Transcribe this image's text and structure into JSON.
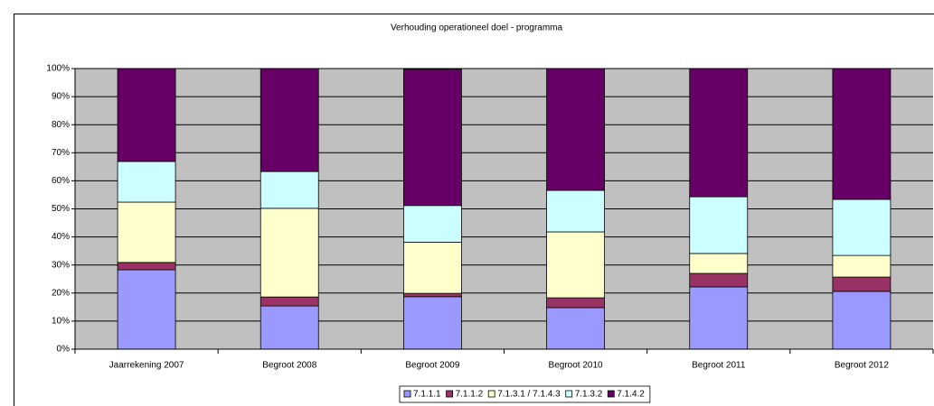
{
  "chart_data": {
    "type": "stacked_bar_100",
    "title": "Verhouding operationeel doel - programma",
    "categories": [
      "Jaarrekening 2007",
      "Begroot 2008",
      "Begroot 2009",
      "Begroot 2010",
      "Begroot 2011",
      "Begroot 2012"
    ],
    "series": [
      {
        "name": "7.1.1.1",
        "color": "#9999ff",
        "values": [
          28.3,
          15.4,
          18.7,
          14.8,
          22.2,
          20.6
        ]
      },
      {
        "name": "7.1.1.2",
        "color": "#993366",
        "values": [
          2.6,
          3.2,
          1.2,
          3.5,
          4.8,
          5.1
        ]
      },
      {
        "name": "7.1.3.1 / 7.1.4.3",
        "color": "#ffffcc",
        "values": [
          21.5,
          31.6,
          18.2,
          23.5,
          7.1,
          7.7
        ]
      },
      {
        "name": "7.1.3.2",
        "color": "#ccffff",
        "values": [
          14.5,
          13.1,
          13.1,
          14.8,
          20.2,
          20.0
        ]
      },
      {
        "name": "7.1.4.2",
        "color": "#660066",
        "values": [
          33.1,
          36.7,
          48.6,
          43.4,
          45.7,
          46.6
        ]
      }
    ],
    "ylim": [
      0,
      100
    ],
    "yticks": [
      {
        "value": 0,
        "label": "0%"
      },
      {
        "value": 10,
        "label": "10%"
      },
      {
        "value": 20,
        "label": "20%"
      },
      {
        "value": 30,
        "label": "30%"
      },
      {
        "value": 40,
        "label": "40%"
      },
      {
        "value": 50,
        "label": "50%"
      },
      {
        "value": 60,
        "label": "60%"
      },
      {
        "value": 70,
        "label": "70%"
      },
      {
        "value": 80,
        "label": "80%"
      },
      {
        "value": 90,
        "label": "90%"
      },
      {
        "value": 100,
        "label": "100%"
      }
    ],
    "grid": true,
    "plot_background": "#c0c0c0",
    "legend": "bottom"
  }
}
